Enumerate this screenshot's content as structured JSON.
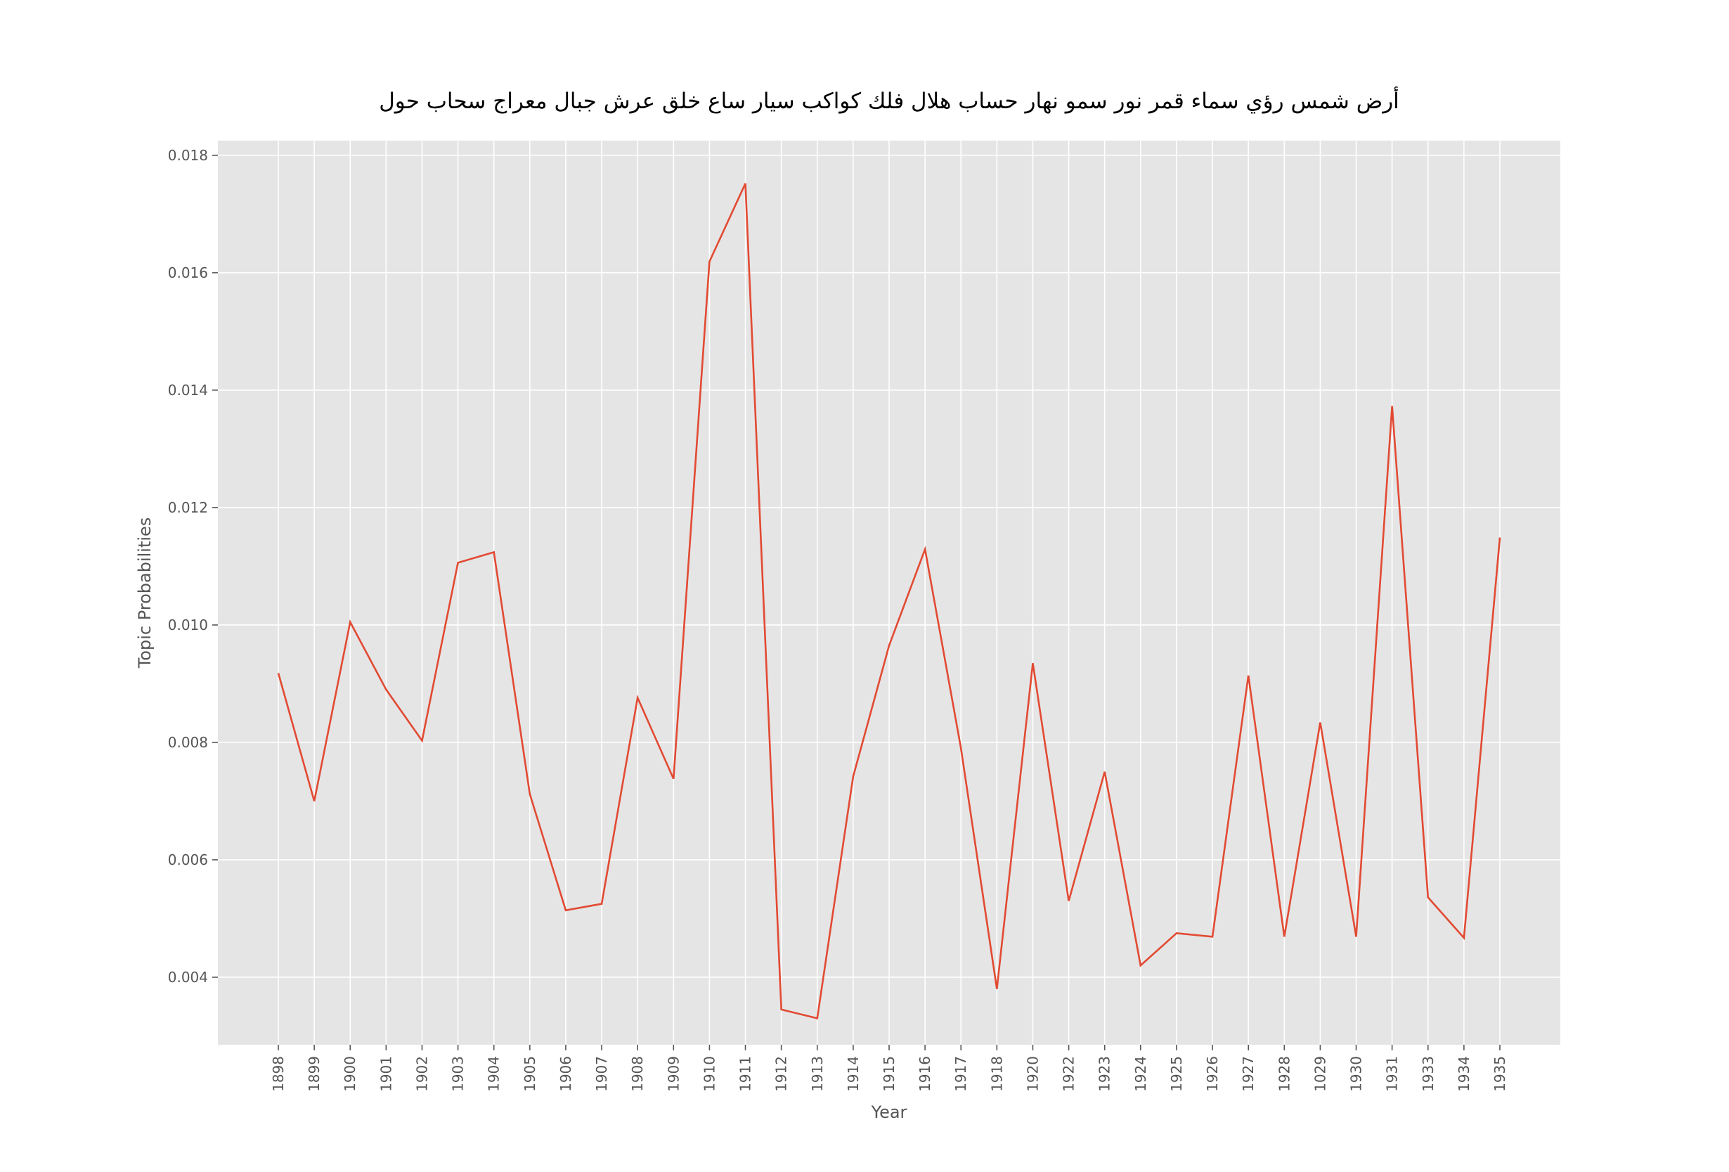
{
  "chart_data": {
    "type": "line",
    "title": "أرض شمس رؤي سماء قمر نور سمو نهار حساب هلال فلك كواكب سيار ساع خلق عرش جبال معراج سحاب حول",
    "xlabel": "Year",
    "ylabel": "Topic Probabilities",
    "categories": [
      "1898",
      "1899",
      "1900",
      "1901",
      "1902",
      "1903",
      "1904",
      "1905",
      "1906",
      "1907",
      "1908",
      "1909",
      "1910",
      "1911",
      "1912",
      "1913",
      "1914",
      "1915",
      "1916",
      "1917",
      "1918",
      "1920",
      "1922",
      "1923",
      "1924",
      "1925",
      "1926",
      "1927",
      "1928",
      "1029",
      "1930",
      "1931",
      "1933",
      "1934",
      "1935"
    ],
    "series": [
      {
        "values": [
          0.00918,
          0.007,
          0.01005,
          0.0089,
          0.00803,
          0.01106,
          0.01124,
          0.00712,
          0.00514,
          0.00525,
          0.00876,
          0.00738,
          0.01619,
          0.01752,
          0.00345,
          0.0033,
          0.00742,
          0.00965,
          0.01129,
          0.0079,
          0.0038,
          0.00935,
          0.0053,
          0.0075,
          0.0042,
          0.00475,
          0.00469,
          0.00914,
          0.00469,
          0.00834,
          0.00469,
          0.01373,
          0.00536,
          0.00467,
          0.01149
        ]
      }
    ],
    "ylim": [
      0.00285,
      0.01825
    ],
    "yticks": [
      "0.004",
      "0.006",
      "0.008",
      "0.010",
      "0.012",
      "0.014",
      "0.016",
      "0.018"
    ],
    "grid": true,
    "line_color": "#e24a33",
    "plot_background": "#e5e5e5",
    "grid_color": "#ffffff"
  }
}
